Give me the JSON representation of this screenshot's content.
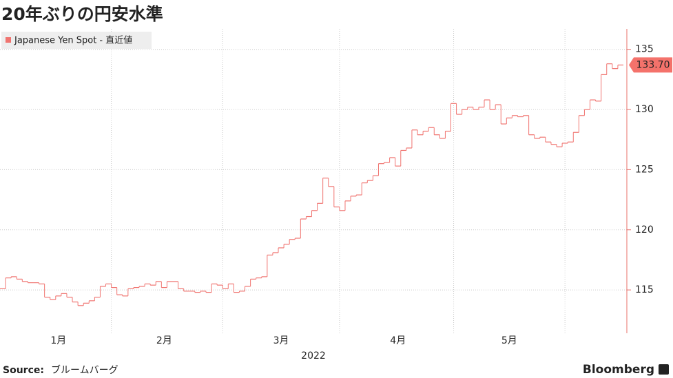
{
  "chart_data": {
    "type": "step",
    "title": "20年ぶりの円安水準",
    "xlabel": "2022",
    "source_label": "Source:",
    "source": "ブルームバーグ",
    "brand": "Bloomberg",
    "categories": [
      null,
      null,
      null,
      null,
      null,
      null,
      null,
      null,
      null,
      null,
      "1月",
      null,
      null,
      null,
      null,
      null,
      null,
      null,
      null,
      null,
      null,
      null,
      null,
      null,
      null,
      null,
      null,
      null,
      null,
      "2月",
      null,
      null,
      null,
      null,
      null,
      null,
      null,
      null,
      null,
      null,
      null,
      null,
      null,
      null,
      null,
      null,
      null,
      null,
      null,
      null,
      "3月",
      null,
      null,
      null,
      null,
      null,
      null,
      null,
      null,
      null,
      null,
      null,
      null,
      null,
      null,
      null,
      null,
      null,
      null,
      null,
      null,
      "4月",
      null,
      null,
      null,
      null,
      null,
      null,
      null,
      null,
      null,
      null,
      null,
      null,
      null,
      null,
      null,
      null,
      null,
      null,
      null,
      "5月",
      null,
      null,
      null,
      null,
      null,
      null,
      null,
      null,
      null,
      null,
      null,
      null,
      null,
      null,
      null,
      null,
      null,
      null,
      null,
      null
    ],
    "series": [
      {
        "name": "Japanese Yen Spot - 直近値",
        "color": "#f07470",
        "values": [
          115.1,
          116.0,
          116.1,
          115.9,
          115.7,
          115.6,
          115.6,
          115.5,
          114.4,
          114.2,
          114.5,
          114.7,
          114.4,
          114.0,
          113.7,
          113.9,
          114.1,
          114.4,
          115.3,
          115.5,
          115.2,
          114.6,
          114.5,
          115.1,
          115.2,
          115.3,
          115.5,
          115.4,
          115.7,
          115.2,
          115.7,
          115.7,
          115.1,
          114.9,
          114.9,
          114.8,
          114.9,
          114.8,
          115.5,
          115.4,
          115.1,
          115.5,
          114.8,
          114.9,
          115.3,
          115.9,
          116.0,
          116.1,
          117.9,
          118.1,
          118.5,
          118.8,
          119.2,
          119.3,
          120.9,
          121.1,
          121.6,
          122.2,
          124.3,
          123.6,
          121.9,
          121.6,
          122.4,
          122.8,
          122.9,
          123.9,
          124.1,
          124.5,
          125.5,
          125.6,
          126.0,
          125.3,
          126.6,
          126.8,
          128.3,
          127.9,
          128.2,
          128.5,
          127.9,
          127.6,
          128.2,
          130.5,
          129.6,
          130.0,
          130.2,
          130.0,
          130.2,
          130.8,
          130.0,
          130.4,
          128.8,
          129.3,
          129.5,
          129.4,
          129.5,
          127.9,
          127.6,
          127.7,
          127.3,
          127.1,
          126.9,
          127.2,
          127.3,
          128.1,
          129.5,
          130.0,
          130.8,
          130.7,
          132.9,
          133.8,
          133.4,
          133.7
        ],
        "value_labels": [
          null,
          null,
          null,
          null,
          null,
          null,
          null,
          null,
          null,
          null,
          null,
          null,
          null,
          null,
          null,
          null,
          null,
          null,
          null,
          null,
          null,
          null,
          null,
          null,
          null,
          null,
          null,
          null,
          null,
          null,
          null,
          null,
          null,
          null,
          null,
          null,
          null,
          null,
          null,
          null,
          null,
          null,
          null,
          null,
          null,
          null,
          null,
          null,
          null,
          null,
          null,
          null,
          null,
          null,
          null,
          null,
          null,
          null,
          null,
          null,
          null,
          null,
          null,
          null,
          null,
          null,
          null,
          null,
          null,
          null,
          null,
          null,
          null,
          null,
          null,
          null,
          null,
          null,
          null,
          null,
          null,
          null,
          null,
          null,
          null,
          null,
          null,
          null,
          null,
          null,
          null,
          null,
          null,
          null,
          null,
          null,
          null,
          null,
          null,
          null,
          null,
          null,
          null,
          null,
          null,
          null,
          null,
          null,
          null,
          null,
          null,
          "133.70"
        ]
      }
    ],
    "ylim": [
      111.4,
      136.7
    ],
    "yticks": [
      115,
      120,
      125,
      130,
      135
    ],
    "grid": true,
    "legend": "top-left"
  }
}
